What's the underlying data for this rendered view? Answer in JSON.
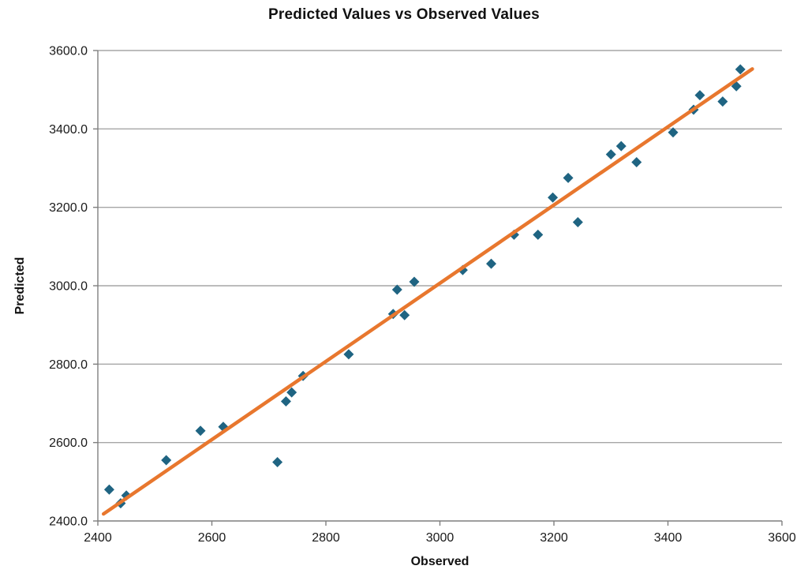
{
  "chart_data": {
    "type": "scatter",
    "title": "Predicted Values vs Observed Values",
    "xlabel": "Observed",
    "ylabel": "Predicted",
    "xlim": [
      2400,
      3600
    ],
    "ylim": [
      2400,
      3600
    ],
    "x_ticks": [
      2400,
      2600,
      2800,
      3000,
      3200,
      3400,
      3600
    ],
    "y_ticks": [
      2400,
      2600,
      2800,
      3000,
      3200,
      3400,
      3600
    ],
    "x_tick_decimals": 0,
    "y_tick_decimals": 1,
    "grid": "horizontal-only",
    "legend": "none",
    "series": [
      {
        "name": "observed-vs-predicted-points",
        "type": "scatter",
        "marker": "diamond",
        "color": "#1F6482",
        "points": [
          [
            2420,
            2480
          ],
          [
            2440,
            2445
          ],
          [
            2450,
            2465
          ],
          [
            2520,
            2555
          ],
          [
            2580,
            2630
          ],
          [
            2620,
            2640
          ],
          [
            2715,
            2550
          ],
          [
            2730,
            2705
          ],
          [
            2740,
            2728
          ],
          [
            2760,
            2770
          ],
          [
            2840,
            2825
          ],
          [
            2918,
            2928
          ],
          [
            2925,
            2990
          ],
          [
            2938,
            2925
          ],
          [
            2955,
            3010
          ],
          [
            3040,
            3040
          ],
          [
            3090,
            3056
          ],
          [
            3130,
            3130
          ],
          [
            3172,
            3130
          ],
          [
            3198,
            3225
          ],
          [
            3225,
            3275
          ],
          [
            3242,
            3162
          ],
          [
            3300,
            3335
          ],
          [
            3318,
            3356
          ],
          [
            3345,
            3315
          ],
          [
            3409,
            3391
          ],
          [
            3445,
            3449
          ],
          [
            3456,
            3486
          ],
          [
            3496,
            3470
          ],
          [
            3520,
            3509
          ],
          [
            3527,
            3552
          ]
        ]
      },
      {
        "name": "linear-trendline",
        "type": "line",
        "color": "#E8772E",
        "points": [
          [
            2410,
            2418
          ],
          [
            3548,
            3553
          ]
        ]
      }
    ],
    "colors": {
      "gridline": "#A6A6A6",
      "axis": "#7F7F7F",
      "text": "#1a1a1a",
      "background": "#FFFFFF"
    }
  }
}
